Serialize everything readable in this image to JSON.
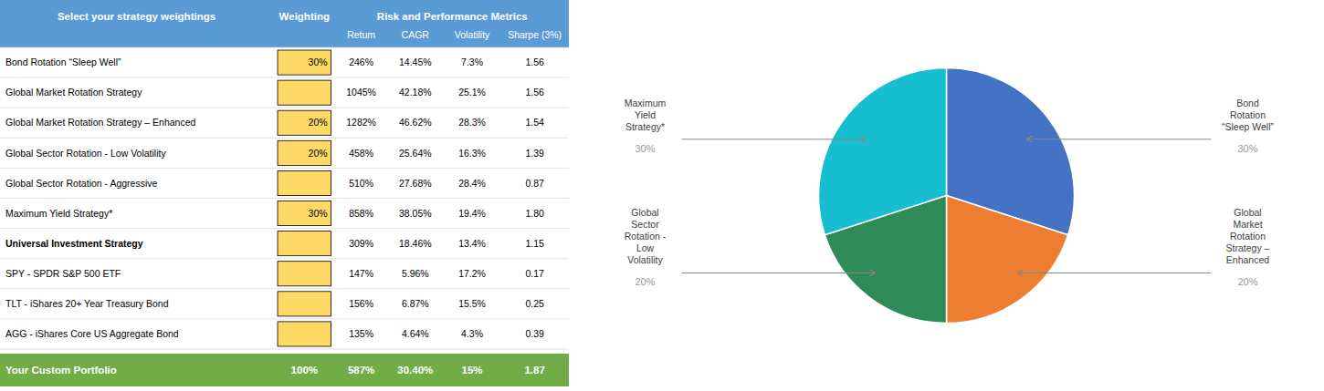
{
  "chart_data": [
    {
      "type": "table",
      "headers": [
        "Select your strategy weightings",
        "Weighting",
        "Risk and Performance Metrics"
      ],
      "columns": [
        "Retum",
        "CAGR",
        "Volatility",
        "Sharpe (3%)"
      ],
      "rows": [
        {
          "name": "Bond Rotation “Sleep Well”",
          "weighting": "30%",
          "return": "246%",
          "cagr": "14.45%",
          "vol": "7.3%",
          "sharpe": "1.56",
          "bold": false
        },
        {
          "name": "Global Market Rotation Strategy",
          "weighting": null,
          "return": "1045%",
          "cagr": "42.18%",
          "vol": "25.1%",
          "sharpe": "1.56",
          "bold": false
        },
        {
          "name": "Global Market Rotation Strategy – Enhanced",
          "weighting": "20%",
          "return": "1282%",
          "cagr": "46.62%",
          "vol": "28.3%",
          "sharpe": "1.54",
          "bold": false
        },
        {
          "name": "Global Sector Rotation - Low Volatility",
          "weighting": "20%",
          "return": "458%",
          "cagr": "25.64%",
          "vol": "16.3%",
          "sharpe": "1.39",
          "bold": false
        },
        {
          "name": "Global Sector Rotation - Aggressive",
          "weighting": null,
          "return": "510%",
          "cagr": "27.68%",
          "vol": "28.4%",
          "sharpe": "0.87",
          "bold": false
        },
        {
          "name": "Maximum Yield Strategy*",
          "weighting": "30%",
          "return": "858%",
          "cagr": "38.05%",
          "vol": "19.4%",
          "sharpe": "1.80",
          "bold": false
        },
        {
          "name": "Universal Investment Strategy",
          "weighting": null,
          "return": "309%",
          "cagr": "18.46%",
          "vol": "13.4%",
          "sharpe": "1.15",
          "bold": true
        },
        {
          "name": "SPY - SPDR S&P 500 ETF",
          "weighting": null,
          "return": "147%",
          "cagr": "5.96%",
          "vol": "17.2%",
          "sharpe": "0.17",
          "bold": false
        },
        {
          "name": "TLT - iShares 20+ Year Treasury Bond",
          "weighting": null,
          "return": "156%",
          "cagr": "6.87%",
          "vol": "15.5%",
          "sharpe": "0.25",
          "bold": false
        },
        {
          "name": "AGG - iShares Core US Aggregate Bond",
          "weighting": null,
          "return": "135%",
          "cagr": "4.64%",
          "vol": "4.3%",
          "sharpe": "0.39",
          "bold": false
        }
      ],
      "footer": [
        "Your Custom Portfolio",
        "100%",
        "587%",
        "30.40%",
        "15%",
        "1.87"
      ],
      "colors": {
        "header": "#5B9BD5",
        "footer": "#70AD47",
        "highlight": "#FFD966"
      }
    },
    {
      "type": "pie",
      "categories": [
        "Bond\nRotation\n“Sleep Well”",
        "Global\nMarket\nRotation\nStrategy –\nEnhanced",
        "Global\nSector\nRotation -\nLow\nVolatility",
        "Maximum\nYield\nStrategy*"
      ],
      "values": [
        30,
        20,
        20,
        30
      ],
      "value_labels": [
        "30%",
        "20%",
        "20%",
        "30%"
      ],
      "colors": [
        "#4472C4",
        "#ED7D31",
        "#2E8B57",
        "#17BECF"
      ],
      "data_labels": true
    }
  ]
}
